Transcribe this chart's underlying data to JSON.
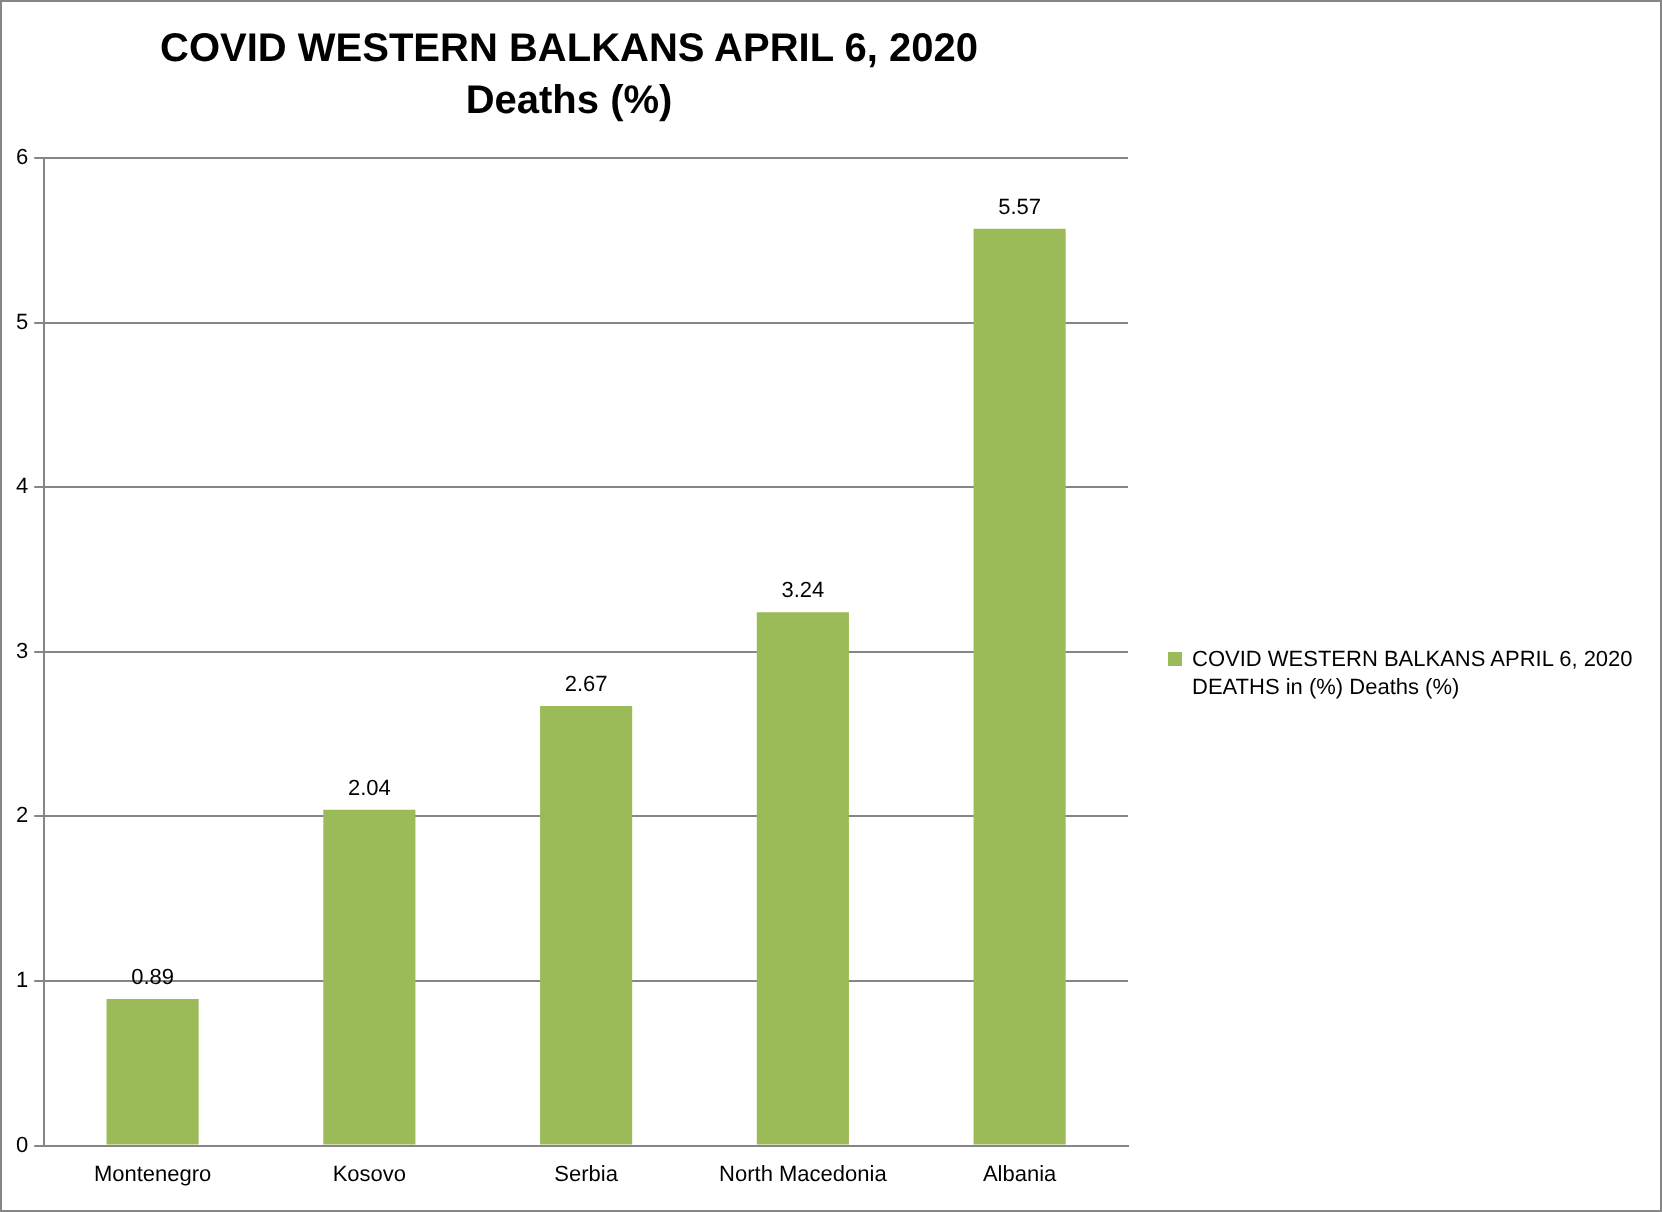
{
  "chart_data": {
    "type": "bar",
    "title": "COVID WESTERN BALKANS APRIL 6, 2020",
    "subtitle": "Deaths (%)",
    "categories": [
      "Montenegro",
      "Kosovo",
      "Serbia",
      "North Macedonia",
      "Albania"
    ],
    "series": [
      {
        "name": "COVID WESTERN BALKANS APRIL 6, 2020 DEATHS in (%) Deaths (%)",
        "color": "#9bbb59",
        "values": [
          0.89,
          2.04,
          2.67,
          3.24,
          5.57
        ]
      }
    ],
    "ylim": [
      0,
      6
    ],
    "yticks": [
      0,
      1,
      2,
      3,
      4,
      5,
      6
    ],
    "grid": "y",
    "legend": "right",
    "data_labels": true
  }
}
